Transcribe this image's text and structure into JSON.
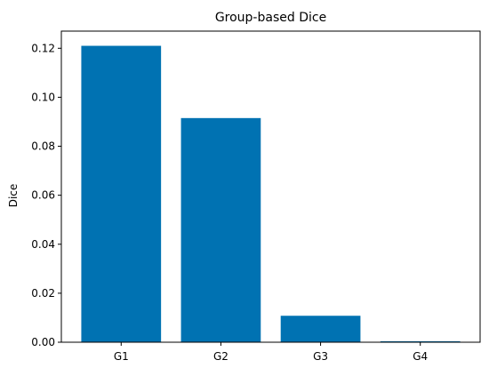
{
  "chart_data": {
    "type": "bar",
    "title": "Group-based Dice",
    "xlabel": "",
    "ylabel": "Dice",
    "categories": [
      "G1",
      "G2",
      "G3",
      "G4"
    ],
    "values": [
      0.121,
      0.0915,
      0.0108,
      0.0004
    ],
    "ylim": [
      0,
      0.127
    ],
    "yticks": [
      0.0,
      0.02,
      0.04,
      0.06,
      0.08,
      0.1,
      0.12
    ],
    "ytick_labels": [
      "0.00",
      "0.02",
      "0.04",
      "0.06",
      "0.08",
      "0.10",
      "0.12"
    ],
    "bar_color": "#0072B2",
    "grid": false,
    "legend": "none"
  }
}
